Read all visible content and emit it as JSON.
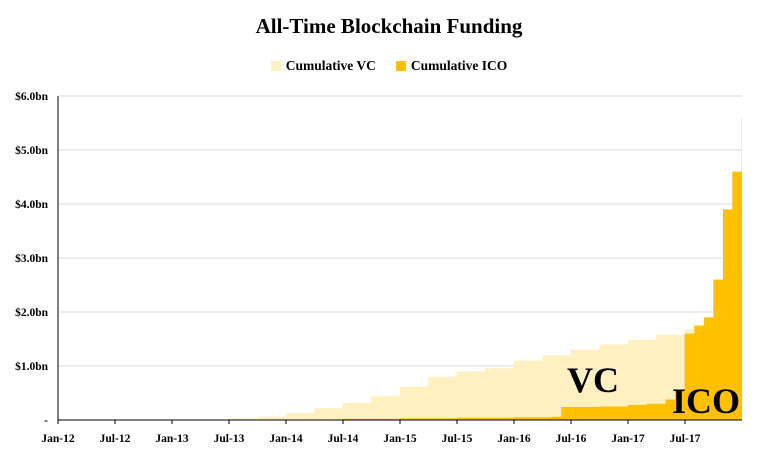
{
  "chart_data": {
    "type": "area",
    "title": "All-Time Blockchain Funding",
    "xlabel": "",
    "ylabel": "",
    "x_tick_labels": [
      "Jan-12",
      "Jul-12",
      "Jan-13",
      "Jul-13",
      "Jan-14",
      "Jul-14",
      "Jan-15",
      "Jul-15",
      "Jan-16",
      "Jul-16",
      "Jan-17",
      "Jul-17"
    ],
    "y_tick_labels": [
      "-",
      "$1.0bn",
      "$2.0bn",
      "$3.0bn",
      "$4.0bn",
      "$5.0bn",
      "$6.0bn"
    ],
    "ylim": [
      0,
      6.0
    ],
    "y_unit": "$bn",
    "grid": true,
    "legend_position": "top-center",
    "series": [
      {
        "name": "Cumulative VC",
        "color": "#FFF0C2",
        "x": [
          "2012-01",
          "2012-07",
          "2013-01",
          "2013-07",
          "2013-10",
          "2014-01",
          "2014-04",
          "2014-07",
          "2014-10",
          "2015-01",
          "2015-04",
          "2015-07",
          "2015-10",
          "2016-01",
          "2016-04",
          "2016-07",
          "2016-10",
          "2017-01",
          "2017-04",
          "2017-07",
          "2017-08",
          "2017-09",
          "2017-10",
          "2017-11",
          "2017-12"
        ],
        "values": [
          0.0,
          0.005,
          0.01,
          0.03,
          0.06,
          0.13,
          0.22,
          0.32,
          0.45,
          0.62,
          0.8,
          0.9,
          0.96,
          1.1,
          1.2,
          1.3,
          1.4,
          1.48,
          1.58,
          1.68,
          1.75,
          1.8,
          1.8,
          1.85,
          1.9
        ]
      },
      {
        "name": "Cumulative ICO",
        "color": "#FFC000",
        "x": [
          "2012-01",
          "2013-07",
          "2014-01",
          "2014-07",
          "2015-01",
          "2015-07",
          "2016-01",
          "2016-05",
          "2016-06",
          "2016-10",
          "2017-01",
          "2017-03",
          "2017-05",
          "2017-06",
          "2017-07",
          "2017-08",
          "2017-09",
          "2017-10",
          "2017-11",
          "2017-12",
          "2017-12-31"
        ],
        "values": [
          0.0,
          0.0,
          0.005,
          0.02,
          0.03,
          0.04,
          0.05,
          0.06,
          0.24,
          0.25,
          0.28,
          0.3,
          0.38,
          0.55,
          1.6,
          1.75,
          1.9,
          2.6,
          3.9,
          4.6,
          5.6
        ]
      }
    ],
    "annotations": [
      "VC",
      "ICO"
    ]
  },
  "colors": {
    "vc": "#FFF0C2",
    "ico": "#FFC000",
    "grid": "#D9D9D9",
    "axis": "#000000"
  }
}
